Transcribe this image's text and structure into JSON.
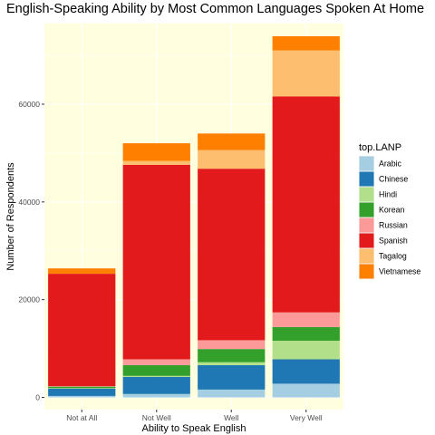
{
  "chart_data": {
    "type": "bar",
    "stacked": true,
    "title": "English-Speaking Ability by Most Common Languages Spoken At Home",
    "xlabel": "Ability to Speak English",
    "ylabel": "Number of Respondents",
    "categories": [
      "Not at All",
      "Not Well",
      "Well",
      "Very Well"
    ],
    "ylim": [
      -2500,
      76500
    ],
    "yticks": [
      0,
      20000,
      40000,
      60000
    ],
    "ytick_labels": [
      "0",
      "20000",
      "40000",
      "60000"
    ],
    "grid": true,
    "background": "#ffffe0",
    "legend": {
      "title": "top.LANP",
      "position": "right"
    },
    "series": [
      {
        "name": "Arabic",
        "color": "#a6cee3",
        "values": [
          300,
          700,
          1600,
          2800
        ]
      },
      {
        "name": "Chinese",
        "color": "#1f78b4",
        "values": [
          1500,
          3500,
          5000,
          5000
        ]
      },
      {
        "name": "Hindi",
        "color": "#b2df8a",
        "values": [
          100,
          200,
          600,
          3800
        ]
      },
      {
        "name": "Korean",
        "color": "#33a02c",
        "values": [
          300,
          2200,
          2700,
          2800
        ]
      },
      {
        "name": "Russian",
        "color": "#fb9a99",
        "values": [
          100,
          1200,
          1800,
          3000
        ]
      },
      {
        "name": "Spanish",
        "color": "#e31a1c",
        "values": [
          23000,
          39800,
          35100,
          44200
        ]
      },
      {
        "name": "Tagalog",
        "color": "#fdbf6f",
        "values": [
          0,
          800,
          3800,
          9400
        ]
      },
      {
        "name": "Vietnamese",
        "color": "#ff7f00",
        "values": [
          1100,
          3600,
          3400,
          2900
        ]
      }
    ]
  }
}
